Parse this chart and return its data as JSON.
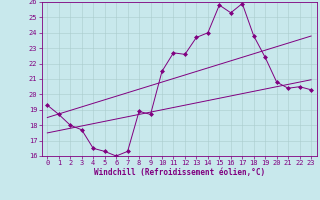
{
  "xlabel": "Windchill (Refroidissement éolien,°C)",
  "x_hours": [
    0,
    1,
    2,
    3,
    4,
    5,
    6,
    7,
    8,
    9,
    10,
    11,
    12,
    13,
    14,
    15,
    16,
    17,
    18,
    19,
    20,
    21,
    22,
    23
  ],
  "temp_line": [
    19.3,
    18.7,
    18.0,
    17.7,
    16.5,
    16.3,
    16.0,
    16.3,
    18.9,
    18.7,
    21.5,
    22.7,
    22.6,
    23.7,
    24.0,
    25.8,
    25.3,
    25.9,
    23.8,
    22.4,
    20.8,
    20.4,
    20.5,
    20.3
  ],
  "reg_low": [
    17.5,
    17.65,
    17.8,
    17.95,
    18.1,
    18.25,
    18.4,
    18.55,
    18.7,
    18.85,
    19.0,
    19.15,
    19.3,
    19.45,
    19.6,
    19.75,
    19.9,
    20.05,
    20.2,
    20.35,
    20.5,
    20.65,
    20.8,
    20.95
  ],
  "reg_high": [
    18.5,
    18.73,
    18.96,
    19.19,
    19.42,
    19.65,
    19.88,
    20.11,
    20.34,
    20.57,
    20.8,
    21.03,
    21.26,
    21.49,
    21.72,
    21.95,
    22.18,
    22.41,
    22.64,
    22.87,
    23.1,
    23.33,
    23.56,
    23.79
  ],
  "line_color": "#800080",
  "marker": "D",
  "markersize": 2,
  "ylim": [
    16,
    26
  ],
  "yticks": [
    16,
    17,
    18,
    19,
    20,
    21,
    22,
    23,
    24,
    25,
    26
  ],
  "bg_color": "#c8e8ec",
  "grid_color": "#aacccc",
  "axis_color": "#800080",
  "tick_color": "#800080",
  "label_color": "#800080",
  "tick_fontsize": 5,
  "label_fontsize": 5.5
}
